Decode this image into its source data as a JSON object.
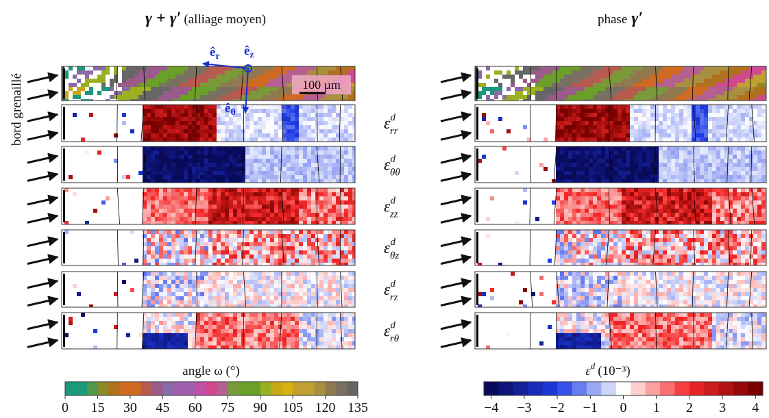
{
  "left_title": {
    "symbol": "γ + γ′",
    "note": "(alliage moyen)"
  },
  "right_title": {
    "text": "phase",
    "symbol": "γ′"
  },
  "side_label": "bord grenaillé",
  "scale_bar": "100 µm",
  "axes": [
    {
      "base": "ê",
      "sub": "r"
    },
    {
      "base": "ê",
      "sub": "z"
    },
    {
      "base": "ê",
      "sub": "θ"
    }
  ],
  "components": [
    {
      "base": "ε",
      "sup": "d",
      "sub": "rr"
    },
    {
      "base": "ε",
      "sup": "d",
      "sub": "θθ"
    },
    {
      "base": "ε",
      "sup": "d",
      "sub": "zz"
    },
    {
      "base": "ε",
      "sup": "d",
      "sub": "θz"
    },
    {
      "base": "ε",
      "sup": "d",
      "sub": "rz"
    },
    {
      "base": "ε",
      "sup": "d",
      "sub": "rθ"
    }
  ],
  "colorbar_left": {
    "label": "angle ω (°)",
    "ticks": [
      "0",
      "15",
      "30",
      "45",
      "60",
      "75",
      "90",
      "105",
      "120",
      "135"
    ]
  },
  "colorbar_right": {
    "label": {
      "base": "ε",
      "sup": "d",
      "unit": "(10⁻³)"
    },
    "ticks": [
      "−4",
      "−3",
      "−2",
      "−1",
      "0",
      "1",
      "2",
      "3",
      "4"
    ]
  }
}
